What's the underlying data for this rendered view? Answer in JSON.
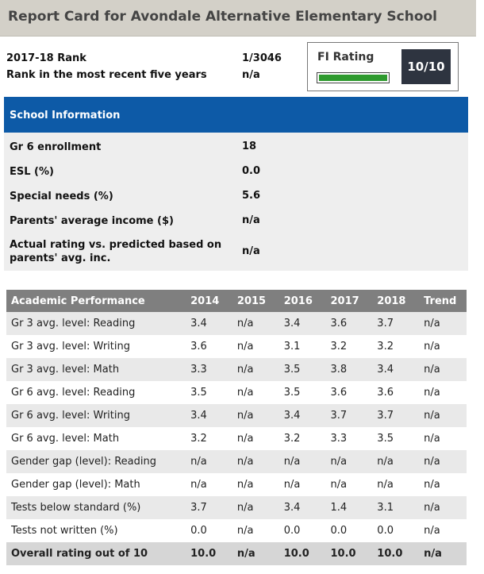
{
  "title": "Report Card for Avondale Alternative Elementary School",
  "rank": {
    "year_label": "2017-18 Rank",
    "year_value": "1/3046",
    "five_year_label": "Rank in the most recent five years",
    "five_year_value": "n/a"
  },
  "fi_rating": {
    "label": "FI Rating",
    "score": "10/10",
    "fraction": 1.0,
    "bar_color": "#2e9a2e"
  },
  "school_info": {
    "header": "School Information",
    "header_color": "#0d5aa7",
    "rows": [
      {
        "label": "Gr 6 enrollment",
        "value": "18"
      },
      {
        "label": "ESL (%)",
        "value": "0.0"
      },
      {
        "label": "Special needs (%)",
        "value": "5.6"
      },
      {
        "label": "Parents' average income ($)",
        "value": "n/a"
      },
      {
        "label": "Actual rating vs. predicted based on parents' avg. inc.",
        "value": "n/a"
      }
    ]
  },
  "academic": {
    "columns": [
      "Academic Performance",
      "2014",
      "2015",
      "2016",
      "2017",
      "2018",
      "Trend"
    ],
    "rows": [
      [
        "Gr 3 avg. level: Reading",
        "3.4",
        "n/a",
        "3.4",
        "3.6",
        "3.7",
        "n/a"
      ],
      [
        "Gr 3 avg. level: Writing",
        "3.6",
        "n/a",
        "3.1",
        "3.2",
        "3.2",
        "n/a"
      ],
      [
        "Gr 3 avg. level: Math",
        "3.3",
        "n/a",
        "3.5",
        "3.8",
        "3.4",
        "n/a"
      ],
      [
        "Gr 6 avg. level: Reading",
        "3.5",
        "n/a",
        "3.5",
        "3.6",
        "3.6",
        "n/a"
      ],
      [
        "Gr 6 avg. level: Writing",
        "3.4",
        "n/a",
        "3.4",
        "3.7",
        "3.7",
        "n/a"
      ],
      [
        "Gr 6 avg. level: Math",
        "3.2",
        "n/a",
        "3.2",
        "3.3",
        "3.5",
        "n/a"
      ],
      [
        "Gender gap (level): Reading",
        "n/a",
        "n/a",
        "n/a",
        "n/a",
        "n/a",
        "n/a"
      ],
      [
        "Gender gap (level): Math",
        "n/a",
        "n/a",
        "n/a",
        "n/a",
        "n/a",
        "n/a"
      ],
      [
        "Tests below standard (%)",
        "3.7",
        "n/a",
        "3.4",
        "1.4",
        "3.1",
        "n/a"
      ],
      [
        "Tests not written (%)",
        "0.0",
        "n/a",
        "0.0",
        "0.0",
        "0.0",
        "n/a"
      ],
      [
        "Overall rating out of 10",
        "10.0",
        "n/a",
        "10.0",
        "10.0",
        "10.0",
        "n/a"
      ]
    ]
  }
}
